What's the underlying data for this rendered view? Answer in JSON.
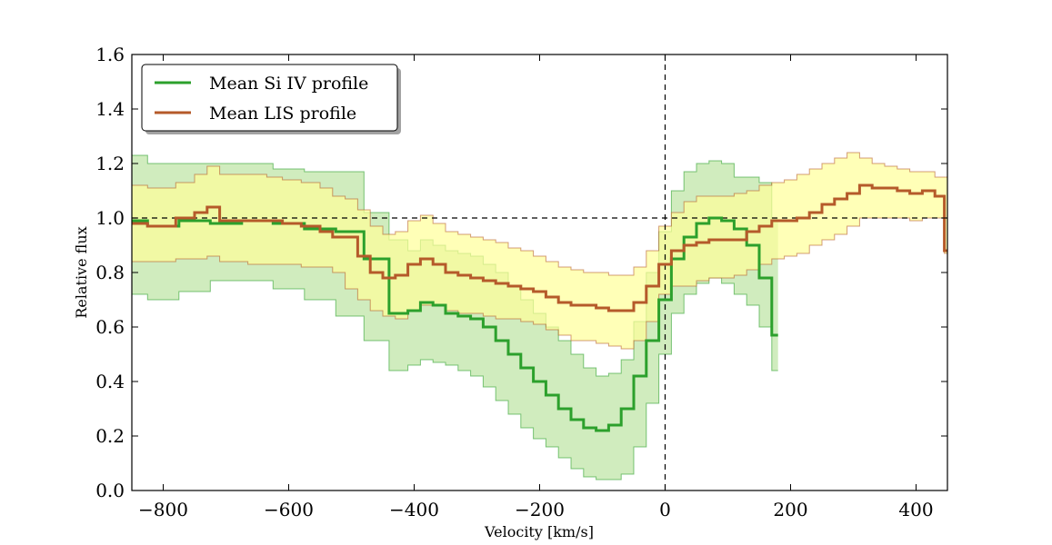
{
  "chart_data": {
    "type": "line",
    "title": "",
    "xlabel": "Velocity [km/s]",
    "ylabel": "Relative flux",
    "xlim": [
      -850,
      450
    ],
    "ylim": [
      0.0,
      1.6
    ],
    "xticks": [
      -800,
      -600,
      -400,
      -200,
      0,
      200,
      400
    ],
    "xtick_labels": [
      "−800",
      "−600",
      "−400",
      "−200",
      "0",
      "200",
      "400"
    ],
    "yticks": [
      0.0,
      0.2,
      0.4,
      0.6,
      0.8,
      1.0,
      1.2,
      1.4,
      1.6
    ],
    "ytick_labels": [
      "0.0",
      "0.2",
      "0.4",
      "0.6",
      "0.8",
      "1.0",
      "1.2",
      "1.4",
      "1.6"
    ],
    "reference_lines": {
      "horizontal_y": 1.0,
      "vertical_x": 0
    },
    "grid": false,
    "legend_position": "top-left",
    "series": [
      {
        "name": "Mean Si IV profile",
        "color": "#2ca02c",
        "fill_color": "#aadd88",
        "x": [
          -850,
          -800,
          -750,
          -700,
          -650,
          -600,
          -550,
          -500,
          -460,
          -420,
          -400,
          -380,
          -360,
          -340,
          -320,
          -300,
          -280,
          -260,
          -240,
          -220,
          -200,
          -180,
          -160,
          -140,
          -120,
          -100,
          -80,
          -60,
          -40,
          -20,
          0,
          20,
          40,
          60,
          80,
          100,
          120,
          140,
          160,
          180
        ],
        "y": [
          0.99,
          0.97,
          0.99,
          0.98,
          0.99,
          0.98,
          0.96,
          0.95,
          0.85,
          0.65,
          0.66,
          0.69,
          0.68,
          0.65,
          0.64,
          0.63,
          0.6,
          0.55,
          0.5,
          0.45,
          0.4,
          0.35,
          0.3,
          0.26,
          0.23,
          0.22,
          0.24,
          0.3,
          0.42,
          0.55,
          0.7,
          0.85,
          0.93,
          0.98,
          1.0,
          0.99,
          0.96,
          0.9,
          0.78,
          0.57
        ],
        "lower": [
          0.72,
          0.7,
          0.73,
          0.77,
          0.77,
          0.74,
          0.7,
          0.64,
          0.55,
          0.44,
          0.46,
          0.48,
          0.47,
          0.46,
          0.44,
          0.42,
          0.38,
          0.33,
          0.28,
          0.23,
          0.19,
          0.16,
          0.12,
          0.08,
          0.05,
          0.04,
          0.04,
          0.06,
          0.16,
          0.32,
          0.5,
          0.65,
          0.72,
          0.76,
          0.78,
          0.76,
          0.72,
          0.68,
          0.6,
          0.44
        ],
        "upper": [
          1.23,
          1.2,
          1.2,
          1.2,
          1.2,
          1.18,
          1.17,
          1.17,
          1.02,
          0.92,
          0.88,
          0.92,
          0.9,
          0.88,
          0.87,
          0.86,
          0.83,
          0.8,
          0.75,
          0.7,
          0.65,
          0.6,
          0.55,
          0.5,
          0.45,
          0.42,
          0.43,
          0.48,
          0.62,
          0.8,
          0.95,
          1.1,
          1.17,
          1.2,
          1.21,
          1.2,
          1.15,
          1.15,
          1.13,
          1.0
        ]
      },
      {
        "name": "Mean LIS profile",
        "color": "#b55a2a",
        "fill_color": "#ffff99",
        "x": [
          -850,
          -800,
          -760,
          -740,
          -720,
          -700,
          -680,
          -650,
          -620,
          -600,
          -560,
          -540,
          -520,
          -500,
          -480,
          -460,
          -440,
          -420,
          -400,
          -380,
          -360,
          -340,
          -320,
          -300,
          -280,
          -260,
          -240,
          -220,
          -200,
          -180,
          -160,
          -140,
          -120,
          -100,
          -80,
          -60,
          -40,
          -20,
          0,
          20,
          40,
          60,
          80,
          100,
          120,
          140,
          160,
          180,
          200,
          220,
          240,
          260,
          280,
          300,
          320,
          340,
          360,
          380,
          400,
          420,
          440,
          450
        ],
        "y": [
          0.98,
          0.97,
          1.0,
          1.02,
          1.04,
          0.99,
          0.99,
          0.99,
          0.99,
          0.98,
          0.97,
          0.95,
          0.93,
          0.93,
          0.86,
          0.8,
          0.78,
          0.79,
          0.83,
          0.85,
          0.83,
          0.8,
          0.79,
          0.78,
          0.77,
          0.76,
          0.75,
          0.74,
          0.73,
          0.71,
          0.69,
          0.68,
          0.68,
          0.67,
          0.66,
          0.66,
          0.69,
          0.75,
          0.83,
          0.88,
          0.9,
          0.91,
          0.92,
          0.92,
          0.92,
          0.95,
          0.97,
          0.99,
          0.99,
          1.0,
          1.02,
          1.05,
          1.07,
          1.09,
          1.12,
          1.11,
          1.11,
          1.1,
          1.09,
          1.1,
          1.08,
          0.88
        ],
        "lower": [
          0.84,
          0.84,
          0.85,
          0.85,
          0.86,
          0.84,
          0.84,
          0.83,
          0.83,
          0.83,
          0.82,
          0.82,
          0.8,
          0.74,
          0.7,
          0.66,
          0.64,
          0.63,
          0.66,
          0.68,
          0.68,
          0.66,
          0.65,
          0.65,
          0.64,
          0.63,
          0.63,
          0.62,
          0.61,
          0.59,
          0.57,
          0.55,
          0.55,
          0.54,
          0.53,
          0.52,
          0.55,
          0.62,
          0.72,
          0.75,
          0.75,
          0.77,
          0.78,
          0.78,
          0.79,
          0.81,
          0.83,
          0.85,
          0.86,
          0.87,
          0.9,
          0.92,
          0.94,
          0.97,
          1.0,
          1.0,
          1.0,
          1.0,
          0.99,
          1.0,
          1.0,
          0.87
        ],
        "upper": [
          1.12,
          1.11,
          1.13,
          1.16,
          1.19,
          1.16,
          1.16,
          1.16,
          1.15,
          1.14,
          1.13,
          1.11,
          1.08,
          1.07,
          1.03,
          0.97,
          0.94,
          0.95,
          0.99,
          1.01,
          0.98,
          0.95,
          0.94,
          0.93,
          0.92,
          0.91,
          0.89,
          0.88,
          0.86,
          0.84,
          0.82,
          0.81,
          0.8,
          0.8,
          0.79,
          0.79,
          0.82,
          0.88,
          0.97,
          1.02,
          1.06,
          1.08,
          1.08,
          1.08,
          1.09,
          1.1,
          1.12,
          1.13,
          1.14,
          1.16,
          1.18,
          1.2,
          1.22,
          1.24,
          1.22,
          1.2,
          1.19,
          1.18,
          1.17,
          1.17,
          1.15,
          1.15
        ]
      }
    ]
  }
}
